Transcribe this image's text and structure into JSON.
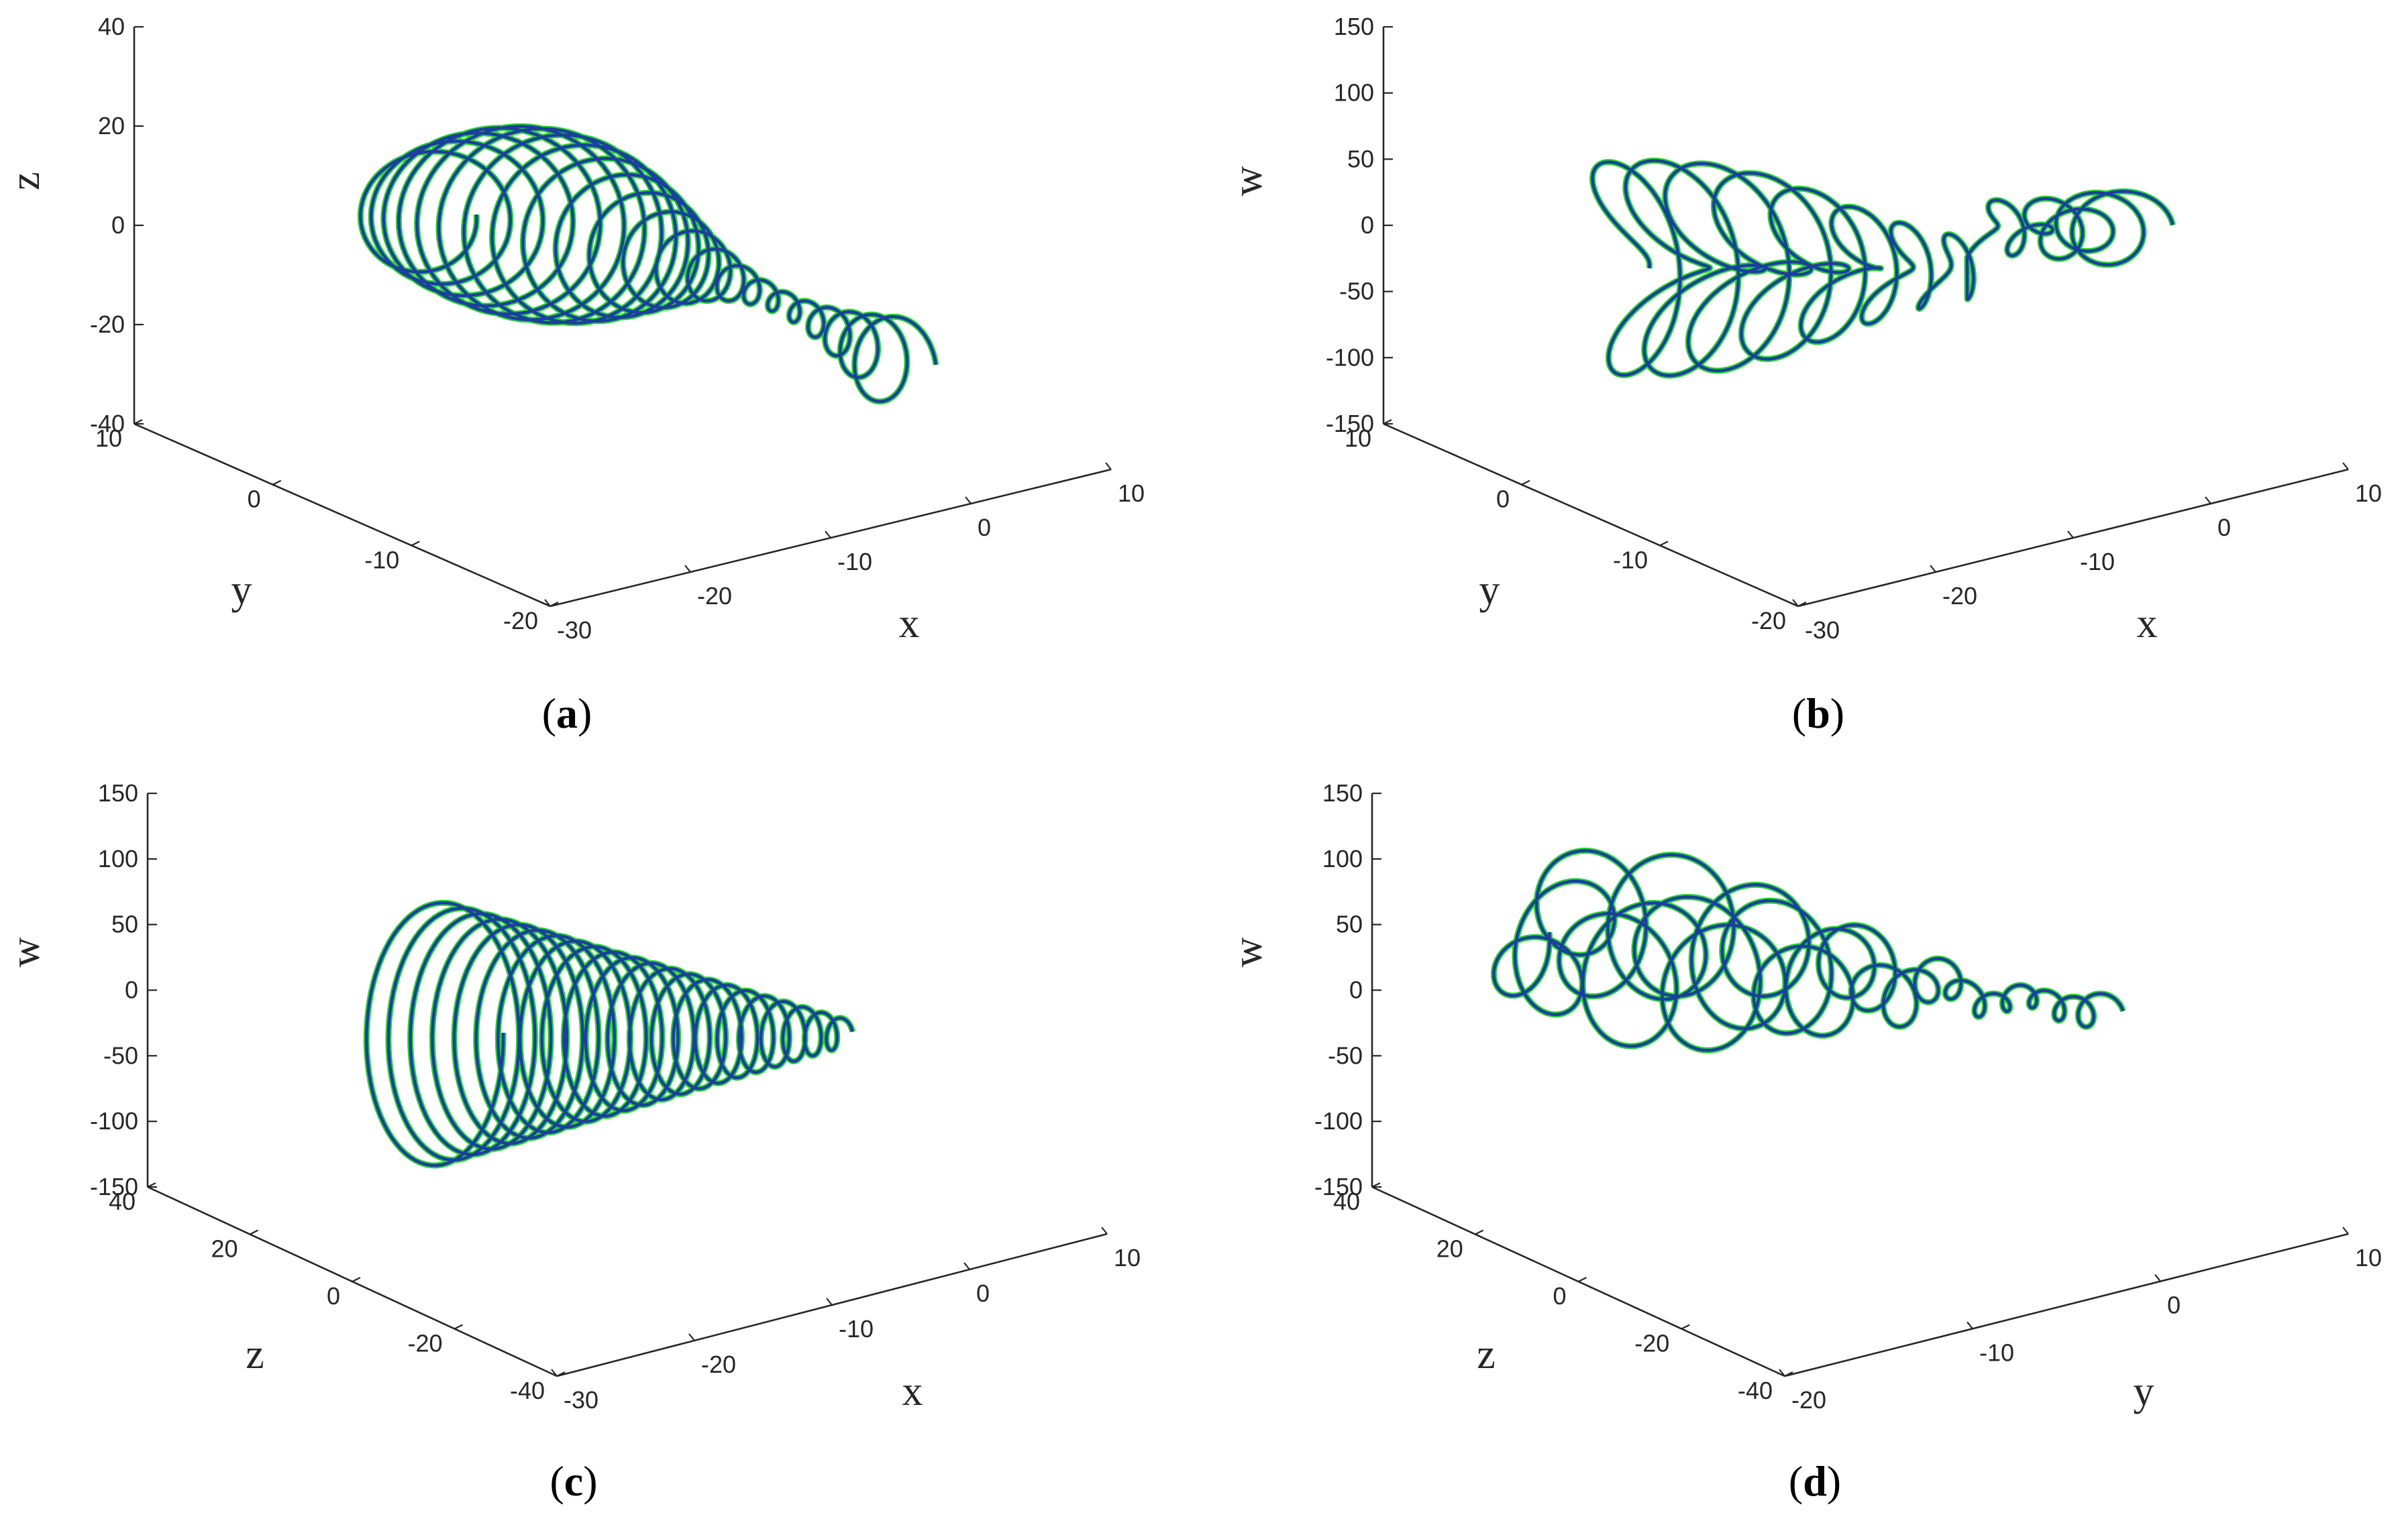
{
  "panels": [
    {
      "id": "a",
      "caption_letter": "a",
      "axis_labels": {
        "vertical": "z",
        "left": "y",
        "right": "x"
      },
      "vertical_ticks": [
        "40",
        "20",
        "0",
        "-20",
        "-40"
      ],
      "left_ticks": [
        "10",
        "0",
        "-10",
        "-20"
      ],
      "right_ticks": [
        "-30",
        "-20",
        "-10",
        "0",
        "10"
      ]
    },
    {
      "id": "b",
      "caption_letter": "b",
      "axis_labels": {
        "vertical": "w",
        "left": "y",
        "right": "x"
      },
      "vertical_ticks": [
        "150",
        "100",
        "50",
        "0",
        "-50",
        "-100",
        "-150"
      ],
      "left_ticks": [
        "10",
        "0",
        "-10",
        "-20"
      ],
      "right_ticks": [
        "-30",
        "-20",
        "-10",
        "0",
        "10"
      ]
    },
    {
      "id": "c",
      "caption_letter": "c",
      "axis_labels": {
        "vertical": "w",
        "left": "z",
        "right": "x"
      },
      "vertical_ticks": [
        "150",
        "100",
        "50",
        "0",
        "-50",
        "-100",
        "-150"
      ],
      "left_ticks": [
        "40",
        "20",
        "0",
        "-20",
        "-40"
      ],
      "right_ticks": [
        "-30",
        "-20",
        "-10",
        "0",
        "10"
      ]
    },
    {
      "id": "d",
      "caption_letter": "d",
      "axis_labels": {
        "vertical": "w",
        "left": "z",
        "right": "y"
      },
      "vertical_ticks": [
        "150",
        "100",
        "50",
        "0",
        "-50",
        "-100",
        "-150"
      ],
      "left_ticks": [
        "40",
        "20",
        "0",
        "-20",
        "-40"
      ],
      "right_ticks": [
        "-20",
        "-10",
        "0",
        "10"
      ]
    }
  ],
  "chart_data": [
    {
      "type": "line",
      "projection": "3d",
      "title": "",
      "xlabel": "x",
      "ylabel": "y",
      "zlabel": "z",
      "xlim": [
        -30,
        10
      ],
      "ylim": [
        -20,
        10
      ],
      "zlim": [
        -40,
        40
      ],
      "grid": false,
      "legend": "none",
      "colors": [
        "#1a3f9c",
        "#2ccf3a"
      ]
    },
    {
      "type": "line",
      "projection": "3d",
      "title": "",
      "xlabel": "x",
      "ylabel": "y",
      "zlabel": "w",
      "xlim": [
        -30,
        10
      ],
      "ylim": [
        -20,
        10
      ],
      "zlim": [
        -150,
        150
      ],
      "grid": false,
      "legend": "none",
      "colors": [
        "#1a3f9c",
        "#2ccf3a"
      ]
    },
    {
      "type": "line",
      "projection": "3d",
      "title": "",
      "xlabel": "x",
      "ylabel": "z",
      "zlabel": "w",
      "xlim": [
        -30,
        10
      ],
      "ylim": [
        -40,
        40
      ],
      "zlim": [
        -150,
        150
      ],
      "grid": false,
      "legend": "none",
      "colors": [
        "#1a3f9c",
        "#2ccf3a"
      ]
    },
    {
      "type": "line",
      "projection": "3d",
      "title": "",
      "xlabel": "y",
      "ylabel": "z",
      "zlabel": "w",
      "xlim": [
        -20,
        10
      ],
      "ylim": [
        -40,
        40
      ],
      "zlim": [
        -150,
        150
      ],
      "grid": false,
      "legend": "none",
      "colors": [
        "#1a3f9c",
        "#2ccf3a"
      ]
    }
  ]
}
